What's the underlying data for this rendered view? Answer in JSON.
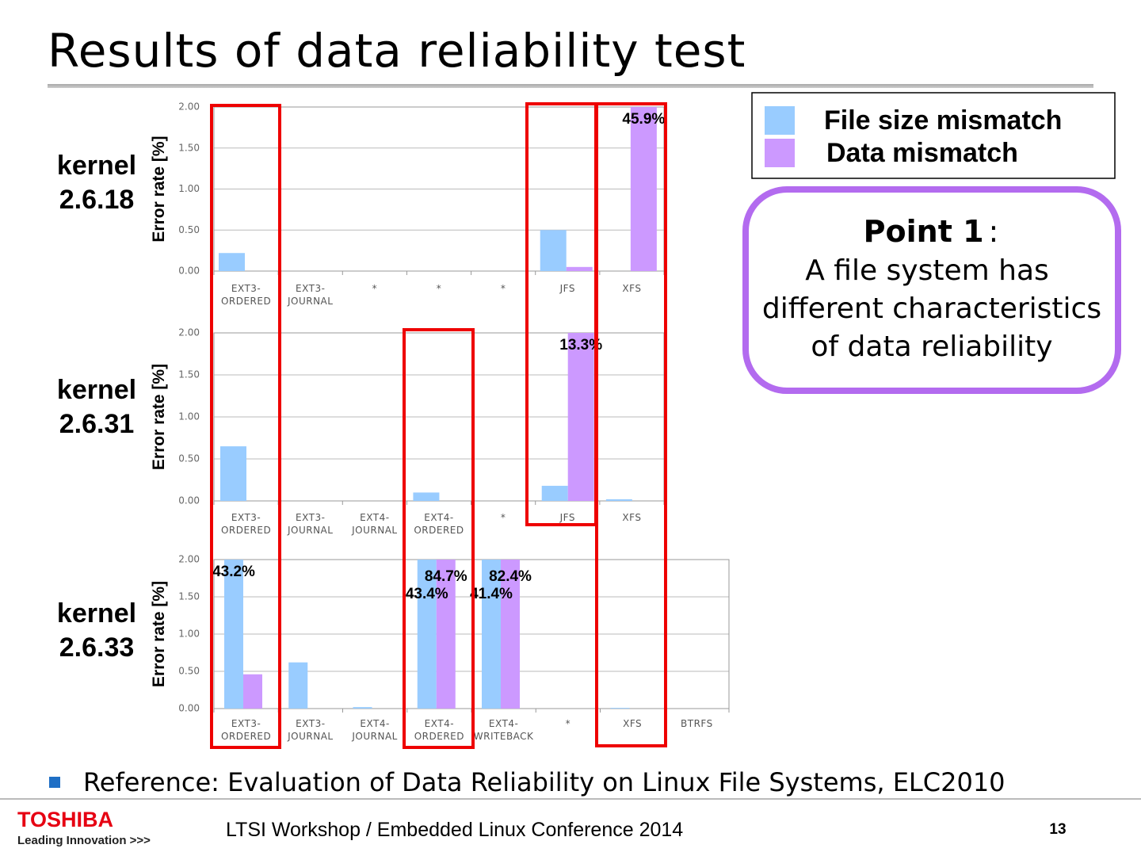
{
  "slide": {
    "title": "Results of data reliability test",
    "point": {
      "heading": "Point 1",
      "colon": ":",
      "lines": [
        "A file system has",
        "different characteristics",
        "of data reliability"
      ]
    },
    "reference": "Reference: Evaluation of Data Reliability on Linux File Systems, ELC2010",
    "footer": {
      "brand": "TOSHIBA",
      "tagline": "Leading Innovation >>>",
      "event": "LTSI Workshop / Embedded Linux Conference 2014",
      "page": 13
    }
  },
  "chart_data": [
    {
      "type": "bar",
      "title": "kernel\n2.6.18",
      "ylabel": "Error rate [%]",
      "categories": [
        "EXT3-\nORDERED",
        "EXT3-\nJOURNAL",
        "*",
        "*",
        "*",
        "JFS",
        "XFS"
      ],
      "series": [
        {
          "name": "File size mismatch",
          "color": "#99ccff",
          "values": [
            0.22,
            0,
            0,
            0,
            0,
            0.5,
            0
          ],
          "value_labels": [
            null,
            null,
            null,
            null,
            null,
            null,
            null
          ]
        },
        {
          "name": "Data mismatch",
          "color": "#cc99ff",
          "values": [
            0,
            0,
            0,
            0,
            0,
            0.05,
            45.9
          ],
          "value_labels": [
            null,
            null,
            null,
            null,
            null,
            null,
            "45.9%"
          ]
        }
      ],
      "ylim": [
        0,
        2
      ],
      "yticks": [
        {
          "value": 0,
          "label": "0.00"
        },
        {
          "value": 0.5,
          "label": "0.50"
        },
        {
          "value": 1,
          "label": "1.00"
        },
        {
          "value": 1.5,
          "label": "1.50"
        },
        {
          "value": 2,
          "label": "2.00"
        }
      ],
      "grid": true
    },
    {
      "type": "bar",
      "title": "kernel\n2.6.31",
      "ylabel": "Error rate [%]",
      "categories": [
        "EXT3-\nORDERED",
        "EXT3-\nJOURNAL",
        "EXT4-\nJOURNAL",
        "EXT4-\nORDERED",
        "*",
        "JFS",
        "XFS"
      ],
      "series": [
        {
          "name": "File size mismatch",
          "color": "#99ccff",
          "values": [
            0.65,
            0,
            0,
            0.1,
            0,
            0.18,
            0.02
          ],
          "value_labels": [
            null,
            null,
            null,
            null,
            null,
            null,
            null
          ]
        },
        {
          "name": "Data mismatch",
          "color": "#cc99ff",
          "values": [
            0,
            0,
            0,
            0,
            0,
            13.3,
            0
          ],
          "value_labels": [
            null,
            null,
            null,
            null,
            null,
            "13.3%",
            null
          ]
        }
      ],
      "ylim": [
        0,
        2
      ],
      "yticks": [
        {
          "value": 0,
          "label": "0.00"
        },
        {
          "value": 0.5,
          "label": "0.50"
        },
        {
          "value": 1,
          "label": "1.00"
        },
        {
          "value": 1.5,
          "label": "1.50"
        },
        {
          "value": 2,
          "label": "2.00"
        }
      ],
      "grid": true
    },
    {
      "type": "bar",
      "title": "kernel\n2.6.33",
      "ylabel": "Error rate [%]",
      "categories": [
        "EXT3-\nORDERED",
        "EXT3-\nJOURNAL",
        "EXT4-\nJOURNAL",
        "EXT4-\nORDERED",
        "EXT4-\nWRITEBACK",
        "*",
        "XFS",
        "BTRFS"
      ],
      "series": [
        {
          "name": "File size mismatch",
          "color": "#99ccff",
          "values": [
            43.2,
            0.62,
            0.02,
            43.4,
            41.4,
            0,
            0.01,
            0
          ],
          "value_labels": [
            "43.2%",
            null,
            null,
            "43.4%",
            "41.4%",
            null,
            null,
            null
          ]
        },
        {
          "name": "Data mismatch",
          "color": "#cc99ff",
          "values": [
            0.46,
            0,
            0,
            84.7,
            82.4,
            0,
            0,
            0
          ],
          "value_labels": [
            null,
            null,
            null,
            "84.7%",
            "82.4%",
            null,
            null,
            null
          ]
        }
      ],
      "ylim": [
        0,
        2
      ],
      "yticks": [
        {
          "value": 0,
          "label": "0.00"
        },
        {
          "value": 0.5,
          "label": "0.50"
        },
        {
          "value": 1,
          "label": "1.00"
        },
        {
          "value": 1.5,
          "label": "1.50"
        },
        {
          "value": 2,
          "label": "2.00"
        }
      ],
      "grid": true
    }
  ]
}
